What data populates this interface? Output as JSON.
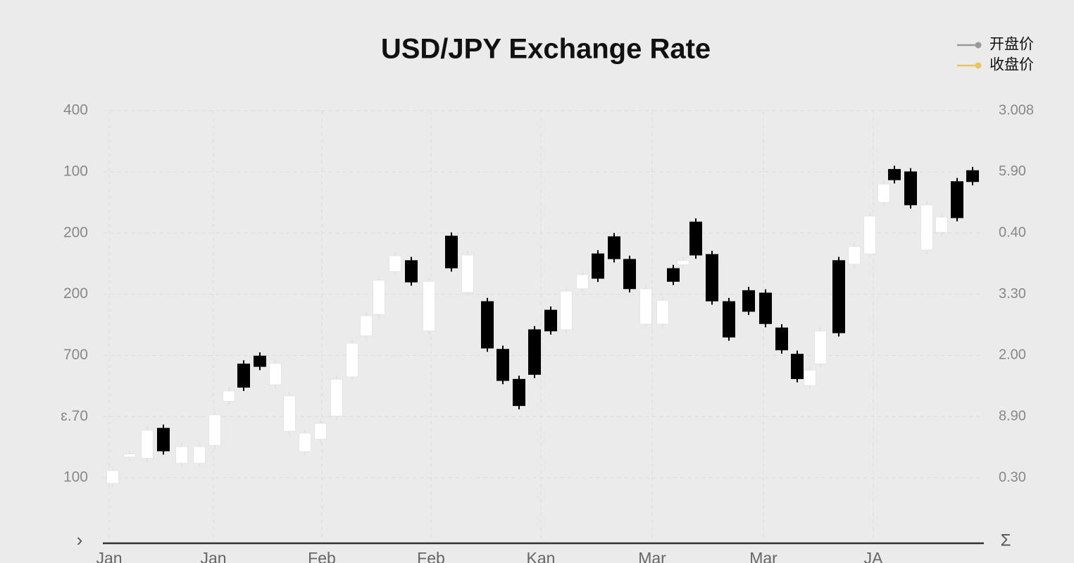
{
  "chart_data": {
    "type": "candlestick",
    "title": "USD/JPY Exchange Rate",
    "legend": [
      {
        "name": "开盘价",
        "color": "#9a9a9a"
      },
      {
        "name": "收盘价",
        "color": "#e6c65a"
      }
    ],
    "legend_position": "upper right",
    "up_color": "#ffffff",
    "down_color": "#000000",
    "grid": true,
    "axis_symbols": {
      "left": "›",
      "right": "Σ"
    },
    "x": [
      1.4,
      3.8,
      6.3,
      8.6,
      11.2,
      13.7,
      15.9,
      17.9,
      20,
      22.3,
      24.5,
      26.5,
      28.7,
      30.9,
      33.2,
      35.4,
      37.4,
      39.2,
      41.5,
      43.8,
      46.3,
      49.5,
      51.8,
      54.6,
      56.8,
      59.1,
      61.3,
      63.6,
      65.8,
      68.1,
      70.3,
      72.6,
      74.8,
      77.1,
      79.5,
      81,
      82.4,
      84.2,
      86.5,
      88.9,
      91.7,
      94.1,
      96.4,
      98.6,
      100.4,
      101.9,
      104.5,
      106.7,
      108.9,
      110.9,
      112.4,
      114.7,
      117,
      119.1,
      121.3,
      123.5
    ],
    "open": [
      0.91,
      1.34,
      1.32,
      1.81,
      1.24,
      1.24,
      1.53,
      2.25,
      2.86,
      2.99,
      2.52,
      1.76,
      1.43,
      1.63,
      2.01,
      2.65,
      3.32,
      3.67,
      4.37,
      4.55,
      3.4,
      4.95,
      4.03,
      3.88,
      3.1,
      2.61,
      3.42,
      3.74,
      3.42,
      4.09,
      4.66,
      4.94,
      4.57,
      3.51,
      3.51,
      4.42,
      4.48,
      5.18,
      4.65,
      3.88,
      4.06,
      4.02,
      3.45,
      3.02,
      2.51,
      2.86,
      4.55,
      4.49,
      4.66,
      5.5,
      6.04,
      6.0,
      4.72,
      5.01,
      5.84,
      6.02
    ],
    "high": [
      1.18,
      1.45,
      1.84,
      1.87,
      1.57,
      1.57,
      2.09,
      2.48,
      2.92,
      3.05,
      2.93,
      2.4,
      1.79,
      1.95,
      2.67,
      3.26,
      3.71,
      4.29,
      4.69,
      4.61,
      4.27,
      5.01,
      4.7,
      3.94,
      3.16,
      2.67,
      3.48,
      3.8,
      4.11,
      4.38,
      4.72,
      5.0,
      4.63,
      4.15,
      3.96,
      4.48,
      4.61,
      5.24,
      4.71,
      3.94,
      4.12,
      4.08,
      3.51,
      3.08,
      2.82,
      3.46,
      4.61,
      4.84,
      5.34,
      5.86,
      6.1,
      6.06,
      5.52,
      5.32,
      5.9,
      6.08
    ],
    "low": [
      0.85,
      1.28,
      1.26,
      1.38,
      1.18,
      1.18,
      1.47,
      2.19,
      2.42,
      2.76,
      2.46,
      1.7,
      1.37,
      1.57,
      1.95,
      2.59,
      3.26,
      3.61,
      4.31,
      4.14,
      3.34,
      4.37,
      3.97,
      3.06,
      2.53,
      2.12,
      2.63,
      3.34,
      3.36,
      4.03,
      4.2,
      4.52,
      4.03,
      3.45,
      3.45,
      4.15,
      4.42,
      4.58,
      3.83,
      3.24,
      3.66,
      3.46,
      3.03,
      2.56,
      2.45,
      2.8,
      3.31,
      4.43,
      4.6,
      5.44,
      5.81,
      5.4,
      4.66,
      4.95,
      5.19,
      5.78
    ],
    "close": [
      1.12,
      1.39,
      1.78,
      1.44,
      1.51,
      1.51,
      2.03,
      2.42,
      2.48,
      2.82,
      2.87,
      2.34,
      1.73,
      1.89,
      2.61,
      3.2,
      3.65,
      4.23,
      4.63,
      4.2,
      4.21,
      4.43,
      4.64,
      3.12,
      2.59,
      2.18,
      2.69,
      3.4,
      4.05,
      4.32,
      4.26,
      4.58,
      4.09,
      4.09,
      3.9,
      4.21,
      4.55,
      4.64,
      3.89,
      3.3,
      3.72,
      3.52,
      3.09,
      2.62,
      2.76,
      3.4,
      3.37,
      4.78,
      5.28,
      5.8,
      5.87,
      5.46,
      5.46,
      5.26,
      5.25,
      5.84
    ],
    "xlim": [
      0,
      125.1
    ],
    "xticks": [
      {
        "value": 0.9,
        "label": "Jan"
      },
      {
        "value": 15.7,
        "label": "Jan"
      },
      {
        "value": 31.1,
        "label": "Feb"
      },
      {
        "value": 46.6,
        "label": "Feb"
      },
      {
        "value": 62.2,
        "label": "Kan"
      },
      {
        "value": 78,
        "label": "Mar"
      },
      {
        "value": 93.8,
        "label": "Mar"
      },
      {
        "value": 109.4,
        "label": "JA"
      }
    ],
    "ylim": [
      0,
      7
    ],
    "yticks": [
      {
        "value": 7,
        "label": "400"
      },
      {
        "value": 6,
        "label": "100"
      },
      {
        "value": 5,
        "label": "200"
      },
      {
        "value": 4,
        "label": "200"
      },
      {
        "value": 3,
        "label": "700"
      },
      {
        "value": 2,
        "label": "ɛ.70"
      },
      {
        "value": 1,
        "label": "100"
      }
    ],
    "y2lim": [
      0,
      7
    ],
    "y2ticks": [
      {
        "value": 7,
        "label": "3.008"
      },
      {
        "value": 6,
        "label": "5.90"
      },
      {
        "value": 5,
        "label": "0.40"
      },
      {
        "value": 4,
        "label": "3.30"
      },
      {
        "value": 3,
        "label": "2.00"
      },
      {
        "value": 2,
        "label": "8.90"
      },
      {
        "value": 1,
        "label": "0.30"
      }
    ]
  }
}
